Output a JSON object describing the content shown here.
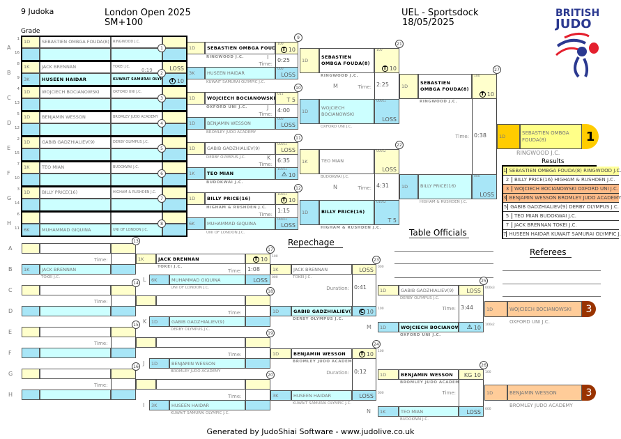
{
  "header": {
    "judoka_count": "9 Judoka",
    "title": "London Open 2025",
    "category": "SM+100",
    "venue": "UEL - Sportsdock",
    "date": "18/05/2025",
    "grade_label": "Grade",
    "logo_text": "BRITISH JUDO"
  },
  "colors": {
    "yellow": "#ffffcc",
    "blue": "#a8e6f7",
    "cyan": "#ccffff",
    "gold": "#ffcc00",
    "bronze": "#ffcc99",
    "bronze_badge": "#993300",
    "logo_blue": "#2b3990",
    "logo_red": "#e4202e"
  },
  "pool": {
    "rows": [
      {
        "letter": "A",
        "seed_top": "1",
        "seed_bottom": "16",
        "match": "1",
        "time": "",
        "top": {
          "grade": "1D",
          "name": "SEBASTIEN OMBGA FOUDA(8)",
          "club": "RINGWOOD J.C."
        },
        "bottom": {}
      },
      {
        "letter": "B",
        "seed_top": "8",
        "seed_bottom": "9",
        "match": "2",
        "time": "0:19",
        "top": {
          "grade": "1K",
          "name": "JACK BRENNAN",
          "club": "TOKEI J.C.",
          "score": "LOSS"
        },
        "bottom": {
          "grade": "3K",
          "name": "HUSEEN HAIDAR",
          "club": "KUWAIT SAMURAI OLYMPIC J.C.",
          "icon": "T",
          "score": "10",
          "winner": true
        }
      },
      {
        "letter": "C",
        "seed_top": "4",
        "seed_bottom": "13",
        "match": "3",
        "time": "",
        "top": {
          "grade": "1D",
          "name": "WOJCIECH BOCIANOWSKI",
          "club": "OXFORD UNI J.C."
        },
        "bottom": {}
      },
      {
        "letter": "D",
        "seed_top": "5",
        "seed_bottom": "12",
        "match": "4",
        "time": "",
        "top": {
          "grade": "1D",
          "name": "BENJAMIN WESSON",
          "club": "BROMLEY JUDO ACADEMY"
        },
        "bottom": {}
      },
      {
        "letter": "E",
        "seed_top": "2",
        "seed_bottom": "15",
        "match": "5",
        "time": "",
        "top": {
          "grade": "1D",
          "name": "GABIB GADZHIALIEV(9)",
          "club": "DERBY OLYMPUS J.C."
        },
        "bottom": {}
      },
      {
        "letter": "F",
        "seed_top": "7",
        "seed_bottom": "10",
        "match": "6",
        "time": "",
        "top": {
          "grade": "1K",
          "name": "TEO MIAN",
          "club": "BUDOKWAI J.C."
        },
        "bottom": {}
      },
      {
        "letter": "G",
        "seed_top": "3",
        "seed_bottom": "14",
        "match": "7",
        "time": "",
        "top": {
          "grade": "1D",
          "name": "BILLY PRICE(16)",
          "club": "HIGHAM & RUSHDEN J.C."
        },
        "bottom": {}
      },
      {
        "letter": "H",
        "seed_top": "6",
        "seed_bottom": "11",
        "match": "8",
        "time": "",
        "top": {},
        "bottom": {
          "grade": "6K",
          "name": "MUHAMMAD GIQUINA",
          "club": "UNI OF LONDON J.C."
        }
      }
    ]
  },
  "round2": [
    {
      "number": "9",
      "letter": "I",
      "time_label": "Time:",
      "time": "0:25",
      "next_grade": "1D",
      "top": {
        "grade": "1D",
        "name": "SEBASTIEN OMBGA FOUDA(8)",
        "club": "RINGWOOD J.C.",
        "icon": "T",
        "score": "10",
        "code": "100",
        "winner": true
      },
      "bottom": {
        "grade": "3K",
        "name": "HUSEEN HAIDAR",
        "club": "KUWAIT SAMURAI OLYMPIC J.C.",
        "score": "LOSS",
        "code": "000"
      }
    },
    {
      "number": "10",
      "letter": "J",
      "time_label": "Time:",
      "time": "4:00",
      "next_grade": "1D",
      "top": {
        "grade": "1D",
        "name": "WOJCIECH BOCIANOWSKI",
        "club": "OXFORD UNI J.C.",
        "score": "T 5",
        "code": "011",
        "winner": true
      },
      "bottom": {
        "grade": "1D",
        "name": "BENJAMIN WESSON",
        "club": "BROMLEY JUDO ACADEMY",
        "score": "LOSS",
        "code": "000"
      }
    },
    {
      "number": "11",
      "letter": "K",
      "time_label": "Time:",
      "time": "6:35",
      "next_grade": "1K",
      "top": {
        "grade": "1D",
        "name": "GABIB GADZHIALIEV(9)",
        "club": "DERBY OLYMPUS J.C.",
        "score": "LOSS",
        "code": "000s1"
      },
      "bottom": {
        "grade": "1K",
        "name": "TEO MIAN",
        "club": "BUDOKWAI J.C.",
        "icon": "warning",
        "score": "10",
        "code": "100s1",
        "winner": true
      }
    },
    {
      "number": "12",
      "letter": "",
      "time_label": "Time:",
      "time": "1:15",
      "next_grade": "1D",
      "top": {
        "grade": "1D",
        "name": "BILLY PRICE(16)",
        "club": "HIGHAM & RUSHDEN J.C.",
        "icon": "T",
        "score": "10",
        "code": "100s1",
        "winner": true
      },
      "bottom": {
        "grade": "6K",
        "name": "MUHAMMAD GIQUINA",
        "club": "UNI OF LONDON J.C.",
        "score": "LOSS",
        "code": "000s1"
      }
    }
  ],
  "round3": [
    {
      "number": "21",
      "letter": "M",
      "time_label": "Time:",
      "time": "2:25",
      "top": {
        "grade": "1D",
        "name": "SEBASTIEN OMBGA FOUDA(8)",
        "club": "RINGWOOD J.C.",
        "icon": "T",
        "score": "10",
        "code": "100",
        "winner": true
      },
      "bottom": {
        "grade": "1D",
        "name": "WOJCIECH BOCIANOWSKI",
        "club": "OXFORD UNI J.C.",
        "score": "LOSS",
        "code": "000s1"
      }
    },
    {
      "number": "22",
      "letter": "N",
      "time_label": "Time:",
      "time": "4:31",
      "top": {
        "grade": "1K",
        "name": "TEO MIAN",
        "club": "BUDOKWAI J.C.",
        "score": "LOSS",
        "code": "000s2"
      },
      "bottom": {
        "grade": "1D",
        "name": "BILLY PRICE(16)",
        "club": "HIGHAM & RUSHDEN J.C.",
        "score": "T 5",
        "code": "010s2",
        "winner": true
      }
    }
  ],
  "final": {
    "number": "27",
    "letter": "",
    "time_label": "Time:",
    "time": "0:38",
    "top": {
      "grade": "1D",
      "name": "SEBASTIEN OMBGA FOUDA(8)",
      "club": "RINGWOOD J.C.",
      "icon": "T",
      "score": "10",
      "code": "100",
      "winner": true
    },
    "bottom": {
      "grade": "1D",
      "name": "BILLY PRICE(16)",
      "club": "HIGHAM & RUSHDEN J.C.",
      "score": "LOSS",
      "code": "000"
    }
  },
  "winner": {
    "grade": "1D",
    "name": "SEBASTIEN OMBGA FOUDA(8)",
    "club": "RINGWOOD J.C.",
    "place": "1"
  },
  "results": {
    "title": "Results",
    "rows": [
      {
        "place": "1",
        "text": "SEBASTIEN OMBGA FOUDA(8) RINGWOOD J.C."
      },
      {
        "place": "2",
        "text": "BILLY PRICE(16) HIGHAM & RUSHDEN J.C."
      },
      {
        "place": "3",
        "text": "WOJCIECH BOCIANOWSKI OXFORD UNI J.C."
      },
      {
        "place": "3",
        "text": "BENJAMIN WESSON BROMLEY JUDO ACADEMY"
      },
      {
        "place": "5",
        "text": "GABIB GADZHIALIEV(9) DERBY OLYMPUS J.C."
      },
      {
        "place": "5",
        "text": "TEO MIAN BUDOKWAI J.C."
      },
      {
        "place": "7",
        "text": "JACK BRENNAN TOKEI J.C."
      },
      {
        "place": "7",
        "text": "HUSEEN HAIDAR KUWAIT SAMURAI OLYMPIC J.C."
      }
    ]
  },
  "officials": {
    "table_title": "Table Officials",
    "referees_title": "Referees"
  },
  "repechage": {
    "title": "Repechage",
    "time_label": "Time:",
    "duration_label": "Duration:",
    "rows": [
      {
        "letter": "A",
        "grade": "",
        "name": "",
        "club": ""
      },
      {
        "letter": "B",
        "grade": "1K",
        "name": "JACK BRENNAN",
        "club": "TOKEI J.C."
      },
      {
        "letter": "C",
        "grade": "",
        "name": "",
        "club": ""
      },
      {
        "letter": "D",
        "grade": "",
        "name": "",
        "club": ""
      },
      {
        "letter": "E",
        "grade": "",
        "name": "",
        "club": ""
      },
      {
        "letter": "F",
        "grade": "",
        "name": "",
        "club": ""
      },
      {
        "letter": "G",
        "grade": "",
        "name": "",
        "club": ""
      },
      {
        "letter": "H",
        "grade": "",
        "name": "",
        "club": ""
      }
    ],
    "first_matches": [
      "13",
      "14",
      "15",
      "16"
    ],
    "round2": [
      {
        "number": "17",
        "letter": "L",
        "time": "1:08",
        "top": {
          "grade": "1K",
          "name": "JACK BRENNAN",
          "club": "TOKEI J.C.",
          "icon": "T",
          "score": "10",
          "code": "100",
          "winner": true
        },
        "bottom": {
          "grade": "6K",
          "name": "MUHAMMAD GIQUINA",
          "club": "UNI OF LONDON J.C.",
          "score": "LOSS",
          "code": "000"
        }
      },
      {
        "number": "18",
        "letter": "K",
        "time": "",
        "top": {},
        "bottom": {
          "grade": "1D",
          "name": "GABIB GADZHIALIEV(9)",
          "club": "DERBY OLYMPUS J.C."
        }
      },
      {
        "number": "19",
        "letter": "J",
        "time": "",
        "top": {},
        "bottom": {
          "grade": "1D",
          "name": "BENJAMIN WESSON",
          "club": "BROMLEY JUDO ACADEMY"
        }
      },
      {
        "number": "20",
        "letter": "I",
        "time": "",
        "top": {},
        "bottom": {
          "grade": "3K",
          "name": "HUSEEN HAIDAR",
          "club": "KUWAIT SAMURAI OLYMPIC J.C."
        }
      }
    ],
    "round3": [
      {
        "number": "23",
        "time": "0:41",
        "top": {
          "grade": "1K",
          "name": "JACK BRENNAN",
          "club": "TOKEI J.C.",
          "score": "LOSS",
          "code": "000"
        },
        "bottom": {
          "grade": "1D",
          "name": "GABIB GADZHIALIEV(9)",
          "club": "DERBY OLYMPUS J.C.",
          "icon": "C",
          "score": "10",
          "code": "100",
          "winner": true
        }
      },
      {
        "number": "24",
        "time": "0:12",
        "top": {
          "grade": "1D",
          "name": "BENJAMIN WESSON",
          "club": "BROMLEY JUDO ACADEMY",
          "icon": "T",
          "score": "10",
          "code": "100",
          "winner": true
        },
        "bottom": {
          "grade": "3K",
          "name": "HUSEEN HAIDAR",
          "club": "KUWAIT SAMURAI OLYMPIC J.C.",
          "score": "LOSS",
          "code": "000"
        }
      }
    ],
    "bronze_matches": [
      {
        "number": "25",
        "letter": "M",
        "time": "3:44",
        "top": {
          "grade": "1D",
          "name": "GABIB GADZHIALIEV(9)",
          "club": "DERBY OLYMPUS J.C.",
          "score": "LOSS",
          "code": "000s3"
        },
        "bottom": {
          "grade": "1D",
          "name": "WOJCIECH BOCIANOWSKI",
          "club": "OXFORD UNI J.C.",
          "icon": "warning",
          "score": "10",
          "code": "100s2",
          "winner": true
        }
      },
      {
        "number": "26",
        "letter": "N",
        "time": "",
        "top": {
          "grade": "1D",
          "name": "BENJAMIN WESSON",
          "club": "BROMLEY JUDO ACADEMY",
          "score": "KG 10",
          "code": "100",
          "winner": true
        },
        "bottom": {
          "grade": "1K",
          "name": "TEO MIAN",
          "club": "BUDOKWAI J.C.",
          "score": "LOSS",
          "code": "000"
        }
      }
    ],
    "bronze": [
      {
        "grade": "1D",
        "name": "WOJCIECH BOCIANOWSKI",
        "club": "OXFORD UNI J.C.",
        "place": "3"
      },
      {
        "grade": "1D",
        "name": "BENJAMIN WESSON",
        "club": "BROMLEY JUDO ACADEMY",
        "place": "3"
      }
    ]
  },
  "footer": "Generated by JudoShiai Software - www.judolive.co.uk"
}
